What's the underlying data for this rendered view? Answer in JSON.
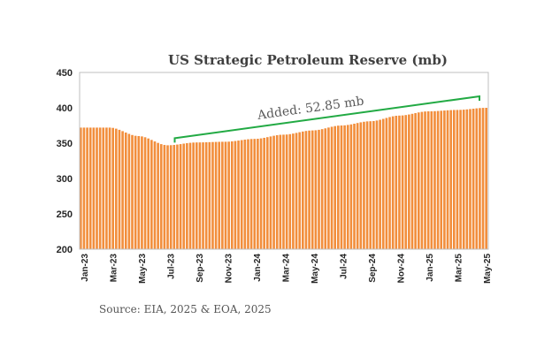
{
  "chart_data": {
    "type": "bar",
    "title": "US Strategic Petroleum Reserve (mb)",
    "xlabel": "",
    "ylabel": "",
    "ylim": [
      200,
      450
    ],
    "yticks": [
      200,
      250,
      300,
      350,
      400,
      450
    ],
    "grid": false,
    "legend": "none",
    "bar_color": "#f28e3c",
    "annotation_color": "#22aa44",
    "x_tick_labels": [
      "Jan-23",
      "Mar-23",
      "May-23",
      "Jul-23",
      "Sep-23",
      "Nov-23",
      "Jan-24",
      "Mar-24",
      "May-24",
      "Jul-24",
      "Sep-24",
      "Nov-24",
      "Jan-25",
      "Mar-25",
      "May-25"
    ],
    "anchors": [
      {
        "label": "Jan-23",
        "value": 372
      },
      {
        "label": "Mar-23",
        "value": 372
      },
      {
        "label": "May-23",
        "value": 360
      },
      {
        "label": "Jul-23",
        "value": 347
      },
      {
        "label": "Sep-23",
        "value": 351
      },
      {
        "label": "Nov-23",
        "value": 352
      },
      {
        "label": "Jan-24",
        "value": 356
      },
      {
        "label": "Mar-24",
        "value": 362
      },
      {
        "label": "May-24",
        "value": 368
      },
      {
        "label": "Jul-24",
        "value": 375
      },
      {
        "label": "Sep-24",
        "value": 381
      },
      {
        "label": "Nov-24",
        "value": 389
      },
      {
        "label": "Jan-25",
        "value": 395
      },
      {
        "label": "Mar-25",
        "value": 397
      },
      {
        "label": "May-25",
        "value": 400
      }
    ],
    "annotation": {
      "text": "Added: 52.85 mb",
      "from": "Jul-23",
      "to": "May-25"
    }
  },
  "source": "Source: EIA, 2025 & EOA, 2025"
}
